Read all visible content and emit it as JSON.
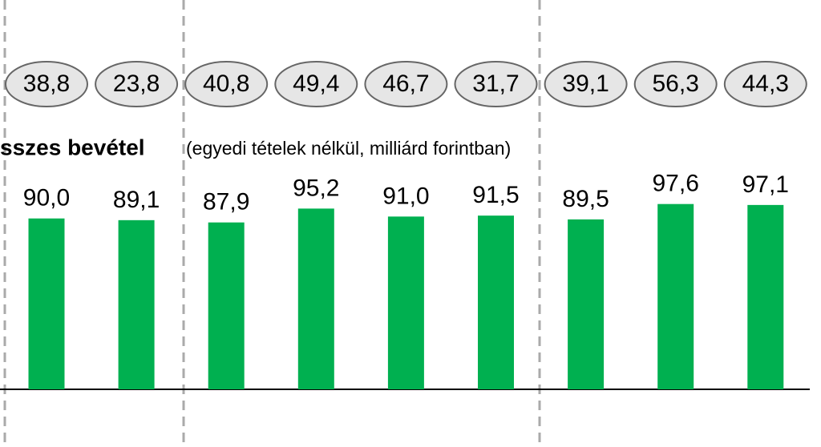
{
  "chart_data": {
    "type": "bar",
    "title": "sszes bevétel",
    "subtitle": "(egyedi tételek nélkül, milliárd forintban)",
    "values": [
      90.0,
      89.1,
      87.9,
      95.2,
      91.0,
      91.5,
      89.5,
      97.6,
      97.1
    ],
    "value_labels": [
      "90,0",
      "89,1",
      "87,9",
      "95,2",
      "91,0",
      "91,5",
      "89,5",
      "97,6",
      "97,1"
    ],
    "color": "#00b050",
    "ylim": [
      0,
      100
    ],
    "top_values": [
      38.8,
      23.8,
      40.8,
      49.4,
      46.7,
      31.7,
      39.1,
      56.3,
      44.3
    ],
    "top_value_labels": [
      "38,8",
      "23,8",
      "40,8",
      "49,4",
      "46,7",
      "31,7",
      "39,1",
      "56,3",
      "44,3"
    ]
  }
}
